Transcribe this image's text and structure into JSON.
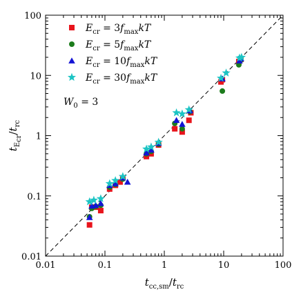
{
  "chart_data": {
    "type": "scatter",
    "xscale": "log",
    "yscale": "log",
    "xlim": [
      0.01,
      100
    ],
    "ylim": [
      0.01,
      100
    ],
    "xticks": [
      0.01,
      0.1,
      1,
      10,
      100
    ],
    "yticks": [
      0.01,
      0.1,
      1,
      10,
      100
    ],
    "xtick_labels": [
      "0.01",
      "0.1",
      "1",
      "10",
      "100"
    ],
    "ytick_labels": [
      "0.01",
      "0.1",
      "1",
      "10",
      "100"
    ],
    "xlabel": {
      "main": "t",
      "sub": "cc,sm",
      "sep": "/",
      "main2": "t",
      "sub2": "rc"
    },
    "ylabel": {
      "main": "t",
      "sub": "E",
      "subsub": "cr",
      "sep": "/",
      "main2": "t",
      "sub2": "rc"
    },
    "annotation": "W₀ = 3",
    "reference_line": {
      "style": "dashed",
      "color": "#000000",
      "relation": "y = x"
    },
    "legend_location": "upper-left",
    "series": [
      {
        "name": "E_cr = 3 f_max kT",
        "legend_label": "Ecr = 3fmaxkT",
        "marker": "square",
        "color": "#e8141c",
        "points": [
          [
            0.055,
            0.033
          ],
          [
            0.06,
            0.065
          ],
          [
            0.07,
            0.065
          ],
          [
            0.085,
            0.057
          ],
          [
            0.12,
            0.13
          ],
          [
            0.15,
            0.15
          ],
          [
            0.18,
            0.17
          ],
          [
            0.2,
            0.2
          ],
          [
            0.5,
            0.45
          ],
          [
            0.6,
            0.5
          ],
          [
            0.8,
            0.7
          ],
          [
            1.5,
            1.3
          ],
          [
            2.0,
            1.15
          ],
          [
            2.6,
            1.8
          ],
          [
            2.8,
            2.4
          ],
          [
            9.0,
            7.8
          ],
          [
            9.5,
            8.5
          ],
          [
            18.0,
            17.0
          ],
          [
            19.5,
            18.5
          ]
        ]
      },
      {
        "name": "E_cr = 5 f_max kT",
        "legend_label": "Ecr = 5fmaxkT",
        "marker": "circle",
        "color": "#1c7c1c",
        "points": [
          [
            0.055,
            0.045
          ],
          [
            0.06,
            0.062
          ],
          [
            0.07,
            0.067
          ],
          [
            0.085,
            0.07
          ],
          [
            0.12,
            0.14
          ],
          [
            0.15,
            0.155
          ],
          [
            0.2,
            0.19
          ],
          [
            0.5,
            0.5
          ],
          [
            0.6,
            0.55
          ],
          [
            0.8,
            0.72
          ],
          [
            1.5,
            1.6
          ],
          [
            2.0,
            1.3
          ],
          [
            2.7,
            2.5
          ],
          [
            9.5,
            5.5
          ],
          [
            18.0,
            15.0
          ],
          [
            19.5,
            18.0
          ]
        ]
      },
      {
        "name": "E_cr = 10 f_max kT",
        "legend_label": "Ecr = 10fmaxkT",
        "marker": "triangle",
        "color": "#1414d4",
        "points": [
          [
            0.055,
            0.044
          ],
          [
            0.06,
            0.068
          ],
          [
            0.07,
            0.07
          ],
          [
            0.085,
            0.075
          ],
          [
            0.12,
            0.15
          ],
          [
            0.15,
            0.16
          ],
          [
            0.2,
            0.2
          ],
          [
            0.24,
            0.17
          ],
          [
            0.5,
            0.52
          ],
          [
            0.6,
            0.58
          ],
          [
            0.8,
            0.75
          ],
          [
            1.6,
            1.8
          ],
          [
            2.0,
            1.55
          ],
          [
            2.7,
            2.6
          ],
          [
            9.5,
            8.8
          ],
          [
            18.5,
            17.5
          ],
          [
            19.5,
            19.0
          ]
        ]
      },
      {
        "name": "E_cr = 30 f_max kT",
        "legend_label": "Ecr = 30fmaxkT",
        "marker": "star",
        "color": "#1cc4c4",
        "points": [
          [
            0.055,
            0.08
          ],
          [
            0.065,
            0.085
          ],
          [
            0.085,
            0.09
          ],
          [
            0.12,
            0.16
          ],
          [
            0.15,
            0.18
          ],
          [
            0.2,
            0.21
          ],
          [
            0.5,
            0.6
          ],
          [
            0.6,
            0.65
          ],
          [
            0.8,
            0.78
          ],
          [
            1.6,
            2.4
          ],
          [
            2.0,
            2.3
          ],
          [
            2.6,
            2.7
          ],
          [
            9.0,
            9.0
          ],
          [
            11.0,
            11.0
          ],
          [
            18.5,
            19.5
          ],
          [
            20.0,
            20.0
          ]
        ]
      }
    ]
  }
}
